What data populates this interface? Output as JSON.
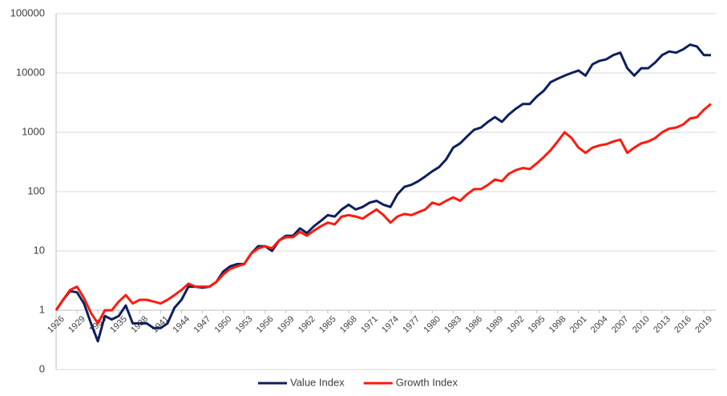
{
  "chart_data": {
    "type": "line",
    "log_y": true,
    "grid": true,
    "legend": "bottom",
    "x": [
      1926,
      1927,
      1928,
      1929,
      1930,
      1931,
      1932,
      1933,
      1934,
      1935,
      1936,
      1937,
      1938,
      1939,
      1940,
      1941,
      1942,
      1943,
      1944,
      1945,
      1946,
      1947,
      1948,
      1949,
      1950,
      1951,
      1952,
      1953,
      1954,
      1955,
      1956,
      1957,
      1958,
      1959,
      1960,
      1961,
      1962,
      1963,
      1964,
      1965,
      1966,
      1967,
      1968,
      1969,
      1970,
      1971,
      1972,
      1973,
      1974,
      1975,
      1976,
      1977,
      1978,
      1979,
      1980,
      1981,
      1982,
      1983,
      1984,
      1985,
      1986,
      1987,
      1988,
      1989,
      1990,
      1991,
      1992,
      1993,
      1994,
      1995,
      1996,
      1997,
      1998,
      1999,
      2000,
      2001,
      2002,
      2003,
      2004,
      2005,
      2006,
      2007,
      2008,
      2009,
      2010,
      2011,
      2012,
      2013,
      2014,
      2015,
      2016,
      2017,
      2018,
      2019,
      2020
    ],
    "series": [
      {
        "name": "Value Index",
        "color": "#0d1f5c",
        "values": [
          1,
          1.5,
          2.1,
          2.0,
          1.3,
          0.6,
          0.3,
          0.8,
          0.7,
          0.8,
          1.2,
          0.6,
          0.6,
          0.6,
          0.5,
          0.5,
          0.6,
          1.1,
          1.5,
          2.5,
          2.5,
          2.4,
          2.5,
          3,
          4.5,
          5.5,
          6,
          6,
          9,
          12,
          12,
          10,
          15,
          18,
          18,
          24,
          20,
          26,
          32,
          40,
          38,
          50,
          60,
          50,
          55,
          65,
          70,
          60,
          55,
          90,
          120,
          130,
          150,
          180,
          220,
          260,
          350,
          550,
          650,
          850,
          1100,
          1200,
          1500,
          1800,
          1500,
          2000,
          2500,
          3000,
          3000,
          4000,
          5000,
          7000,
          8000,
          9000,
          10000,
          11000,
          9000,
          14000,
          16000,
          17000,
          20000,
          22000,
          12000,
          9000,
          12000,
          12000,
          15000,
          20000,
          23000,
          22000,
          25000,
          30000,
          28000,
          20000,
          20000
        ]
      },
      {
        "name": "Growth Index",
        "color": "#ff1a0d",
        "values": [
          1,
          1.5,
          2.2,
          2.5,
          1.6,
          0.9,
          0.6,
          1.0,
          1.0,
          1.4,
          1.8,
          1.3,
          1.5,
          1.5,
          1.4,
          1.3,
          1.5,
          1.8,
          2.2,
          2.8,
          2.5,
          2.5,
          2.5,
          3,
          4,
          5,
          5.5,
          6,
          9,
          11,
          12,
          11,
          15,
          17,
          17,
          21,
          18,
          22,
          26,
          30,
          28,
          38,
          40,
          38,
          35,
          42,
          50,
          40,
          30,
          38,
          42,
          40,
          45,
          50,
          65,
          60,
          70,
          80,
          70,
          90,
          110,
          110,
          130,
          160,
          150,
          200,
          230,
          250,
          240,
          300,
          380,
          500,
          700,
          1000,
          800,
          550,
          450,
          550,
          600,
          630,
          700,
          750,
          450,
          550,
          650,
          700,
          800,
          1000,
          1150,
          1200,
          1350,
          1700,
          1800,
          2400,
          3000
        ]
      }
    ],
    "xlim": [
      1926,
      2020.7
    ],
    "xticks": [
      1926,
      1929,
      1932,
      1935,
      1938,
      1941,
      1944,
      1947,
      1950,
      1953,
      1956,
      1959,
      1962,
      1965,
      1968,
      1971,
      1974,
      1977,
      1980,
      1983,
      1986,
      1989,
      1992,
      1995,
      1998,
      2001,
      2004,
      2007,
      2010,
      2013,
      2016,
      2019
    ],
    "ylim": [
      0.1,
      100000
    ],
    "yticks": [
      {
        "value": 0.1,
        "label": "0"
      },
      1,
      10,
      100,
      1000,
      10000,
      100000
    ]
  }
}
